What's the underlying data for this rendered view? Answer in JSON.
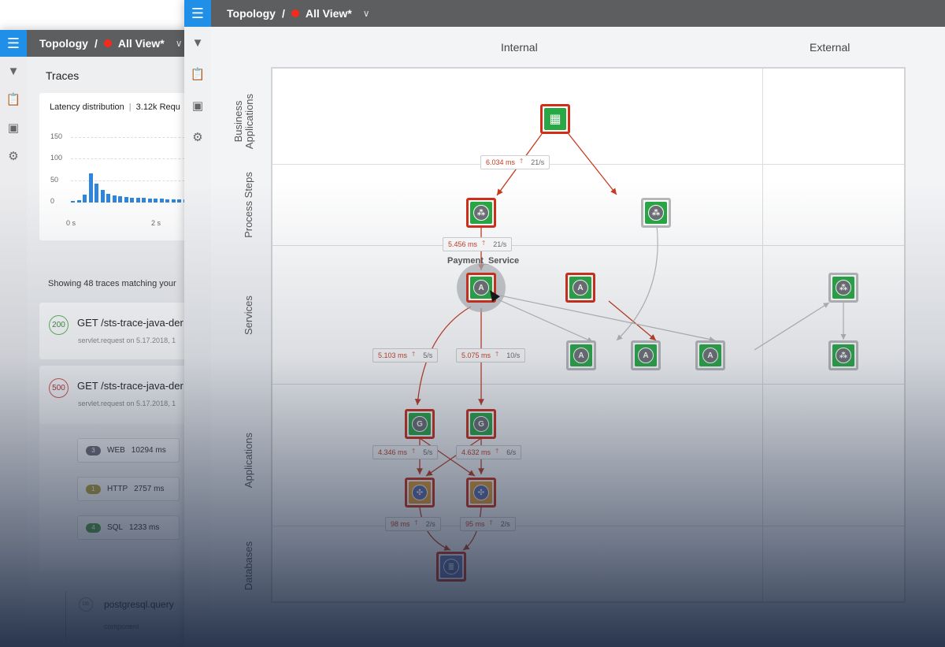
{
  "back_window": {
    "breadcrumb": {
      "view": "Topology",
      "separator": "/",
      "current": "All View*"
    },
    "rail_icons": [
      "filter-icon",
      "clipboard-icon",
      "panel-icon",
      "gear-icon"
    ],
    "traces_title": "Traces",
    "latency": {
      "title": "Latency distribution",
      "separator": "|",
      "requests": "3.12k Requ",
      "y_ticks": [
        "150",
        "100",
        "50",
        "0"
      ],
      "x_ticks": [
        "0 s",
        "2 s"
      ]
    },
    "showing_text": "Showing 48 traces matching your",
    "traces": [
      {
        "code": "200",
        "status": "ok",
        "title": "GET /sts-trace-java-der",
        "sub": "servlet.request on 5.17.2018, 1"
      },
      {
        "code": "500",
        "status": "error",
        "title": "GET /sts-trace-java-der",
        "sub": "servlet.request on 5.17.2018, 1"
      }
    ],
    "spans": [
      {
        "count": "3",
        "type": "WEB",
        "duration": "10294 ms",
        "color": "#6e6f7a"
      },
      {
        "count": "1",
        "type": "HTTP",
        "duration": "2757 ms",
        "color": "#b3a23a"
      },
      {
        "count": "4",
        "type": "SQL",
        "duration": "1233 ms",
        "color": "#4e9a46"
      }
    ],
    "pg": {
      "icon": "DB",
      "label": "postgresql.query",
      "sub": "component"
    }
  },
  "front_window": {
    "breadcrumb": {
      "view": "Topology",
      "separator": "/",
      "current": "All View*"
    },
    "rail_icons": [
      "filter-icon",
      "clipboard-icon",
      "panel-icon",
      "gear-icon"
    ],
    "columns": [
      "Internal",
      "External"
    ],
    "rows": [
      "Business\nApplications",
      "Process Steps",
      "Services",
      "Applications",
      "Databases"
    ],
    "selected_service": "Payment_Service",
    "edge_labels": [
      {
        "ms": "6.034 ms",
        "rate": "21/s"
      },
      {
        "ms": "5.456 ms",
        "rate": "21/s"
      },
      {
        "ms": "5.103 ms",
        "rate": "5/s"
      },
      {
        "ms": "5.075 ms",
        "rate": "10/s"
      },
      {
        "ms": "4.346 ms",
        "rate": "5/s"
      },
      {
        "ms": "4.632 ms",
        "rate": "6/s"
      },
      {
        "ms": "98 ms",
        "rate": "2/s"
      },
      {
        "ms": "95 ms",
        "rate": "2/s"
      }
    ],
    "node_glyphs": {
      "business": "▦",
      "process": "⁂",
      "service": "A",
      "app": "G",
      "lib": "✣",
      "db": "≣"
    },
    "colors": {
      "accent": "#1f8fe8",
      "alert": "#d22d17",
      "healthy": "#27a844",
      "status_dot": "#f42a1b"
    }
  }
}
